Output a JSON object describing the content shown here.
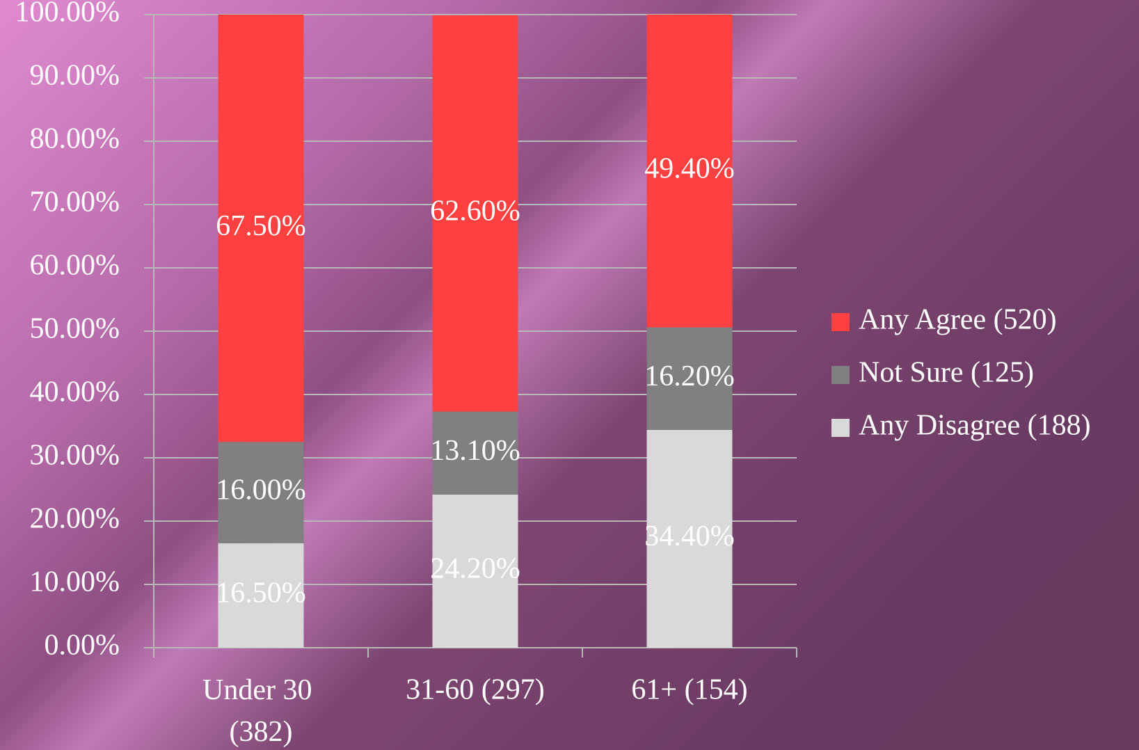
{
  "chart_data": {
    "type": "stacked_bar",
    "categories": [
      "Under 30 (382)",
      "31-60 (297)",
      "61+ (154)"
    ],
    "series": [
      {
        "name": "Any Disagree (188)",
        "color": "#d9d9d9",
        "label_color": "#000000",
        "values": [
          16.5,
          24.2,
          34.4
        ],
        "value_labels": [
          "16.50%",
          "24.20%",
          "34.40%"
        ]
      },
      {
        "name": "Not Sure (125)",
        "color": "#808080",
        "label_color": "#ffffff",
        "values": [
          16.0,
          13.1,
          16.2
        ],
        "value_labels": [
          "16.00%",
          "13.10%",
          "16.20%"
        ]
      },
      {
        "name": "Any Agree (520)",
        "color": "#ff4040",
        "label_color": "#ffffff",
        "values": [
          67.5,
          62.6,
          49.4
        ],
        "value_labels": [
          "67.50%",
          "62.60%",
          "49.40%"
        ]
      }
    ],
    "ylim": [
      0,
      100
    ],
    "yticks": [
      {
        "value": 0,
        "label": "0.00%"
      },
      {
        "value": 10,
        "label": "10.00%"
      },
      {
        "value": 20,
        "label": "20.00%"
      },
      {
        "value": 30,
        "label": "30.00%"
      },
      {
        "value": 40,
        "label": "40.00%"
      },
      {
        "value": 50,
        "label": "50.00%"
      },
      {
        "value": 60,
        "label": "60.00%"
      },
      {
        "value": 70,
        "label": "70.00%"
      },
      {
        "value": 80,
        "label": "80.00%"
      },
      {
        "value": 90,
        "label": "90.00%"
      },
      {
        "value": 100,
        "label": "100.00%"
      }
    ],
    "grid": true,
    "legend": "right"
  }
}
